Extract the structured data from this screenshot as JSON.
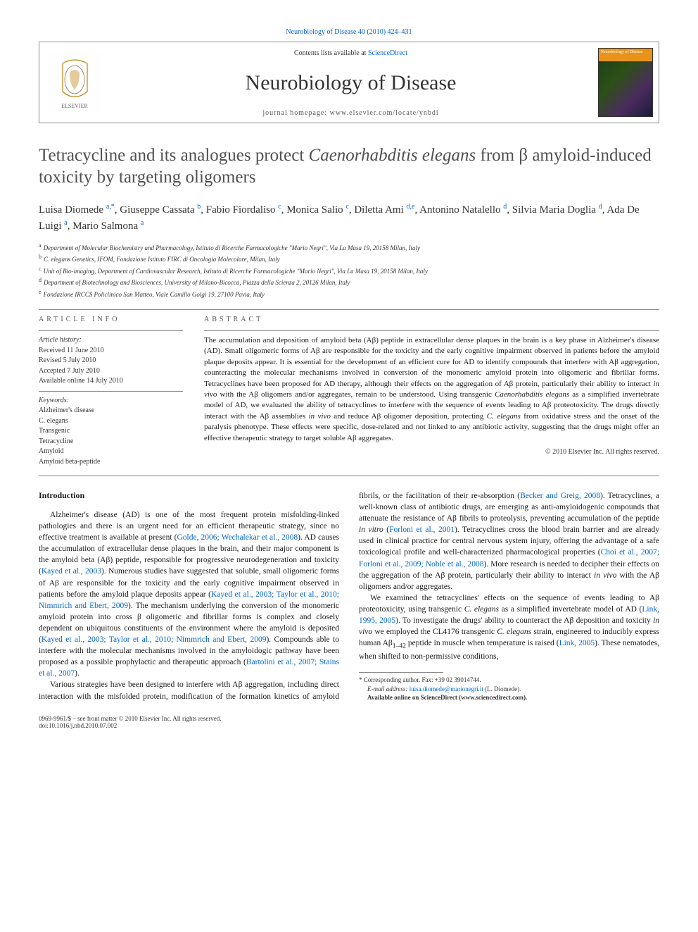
{
  "header": {
    "citation_link": "Neurobiology of Disease 40 (2010) 424–431",
    "contents_prefix": "Contents lists available at ",
    "contents_link": "ScienceDirect",
    "journal_name": "Neurobiology of Disease",
    "homepage_prefix": "journal homepage: ",
    "homepage_url": "www.elsevier.com/locate/ynbdi",
    "cover_label": "Neurobiology of Disease",
    "colors": {
      "link": "#0066cc",
      "border": "#888888",
      "text": "#1a1a1a",
      "cover_bar": "#e8941a"
    }
  },
  "title": {
    "html": "Tetracycline and its analogues protect <em>Caenorhabditis elegans</em> from β amyloid-induced toxicity by targeting oligomers"
  },
  "authors_html": "Luisa Diomede <sup>a,*</sup>, Giuseppe Cassata <sup>b</sup>, Fabio Fiordaliso <sup>c</sup>, Monica Salio <sup>c</sup>, Diletta Ami <sup>d,e</sup>, Antonino Natalello <sup>d</sup>, Silvia Maria Doglia <sup>d</sup>, Ada De Luigi <sup>a</sup>, Mario Salmona <sup>a</sup>",
  "affiliations": [
    {
      "sup": "a",
      "text": "Department of Molecular Biochemistry and Pharmacology, Istituto di Ricerche Farmacologiche \"Mario Negri\", Via La Masa 19, 20158 Milan, Italy"
    },
    {
      "sup": "b",
      "text": "C. elegans Genetics, IFOM, Fondazione Istituto FIRC di Oncologia Molecolare, Milan, Italy"
    },
    {
      "sup": "c",
      "text": "Unit of Bio-imaging, Department of Cardiovascular Research, Istituto di Ricerche Farmacologiche \"Mario Negri\", Via La Masa 19, 20158 Milan, Italy"
    },
    {
      "sup": "d",
      "text": "Department of Biotechnology and Biosciences, University of Milano-Bicocca, Piazza della Scienza 2, 20126 Milan, Italy"
    },
    {
      "sup": "e",
      "text": "Fondazione IRCCS Policlinico San Matteo, Viale Camillo Golgi 19, 27100 Pavia, Italy"
    }
  ],
  "article_info": {
    "heading": "ARTICLE INFO",
    "history_label": "Article history:",
    "history": [
      "Received 11 June 2010",
      "Revised 5 July 2010",
      "Accepted 7 July 2010",
      "Available online 14 July 2010"
    ],
    "keywords_label": "Keywords:",
    "keywords": [
      "Alzheimer's disease",
      "C. elegans",
      "Transgenic",
      "Tetracycline",
      "Amyloid",
      "Amyloid beta-peptide"
    ]
  },
  "abstract": {
    "heading": "ABSTRACT",
    "text_html": "The accumulation and deposition of amyloid beta (Aβ) peptide in extracellular dense plaques in the brain is a key phase in Alzheimer's disease (AD). Small oligomeric forms of Aβ are responsible for the toxicity and the early cognitive impairment observed in patients before the amyloid plaque deposits appear. It is essential for the development of an efficient cure for AD to identify compounds that interfere with Aβ aggregation, counteracting the molecular mechanisms involved in conversion of the monomeric amyloid protein into oligomeric and fibrillar forms. Tetracyclines have been proposed for AD therapy, although their effects on the aggregation of Aβ protein, particularly their ability to interact <em>in vivo</em> with the Aβ oligomers and/or aggregates, remain to be understood. Using transgenic <em>Caenorhabditis elegans</em> as a simplified invertebrate model of AD, we evaluated the ability of tetracyclines to interfere with the sequence of events leading to Aβ proteotoxicity. The drugs directly interact with the Aβ assemblies <em>in vivo</em> and reduce Aβ oligomer deposition, protecting <em>C. elegans</em> from oxidative stress and the onset of the paralysis phenotype. These effects were specific, dose-related and not linked to any antibiotic activity, suggesting that the drugs might offer an effective therapeutic strategy to target soluble Aβ aggregates.",
    "copyright": "© 2010 Elsevier Inc. All rights reserved."
  },
  "intro": {
    "heading": "Introduction",
    "paragraphs_html": [
      "Alzheimer's disease (AD) is one of the most frequent protein misfolding-linked pathologies and there is an urgent need for an efficient therapeutic strategy, since no effective treatment is available at present (<span class=\"cite\">Golde, 2006; Wechalekar et al., 2008</span>). AD causes the accumulation of extracellular dense plaques in the brain, and their major component is the amyloid beta (Aβ) peptide, responsible for progressive neurodegeneration and toxicity (<span class=\"cite\">Kayed et al., 2003</span>). Numerous studies have suggested that soluble, small oligomeric forms of Aβ are responsible for the toxicity and the early cognitive impairment observed in patients before the amyloid plaque deposits appear (<span class=\"cite\">Kayed et al., 2003; Taylor et al., 2010; Nimmrich and Ebert, 2009</span>). The mechanism underlying the conversion of the monomeric amyloid protein into cross β oligomeric and fibrillar forms is complex and closely dependent on ubiquitous constituents of the environment where the amyloid is deposited (<span class=\"cite\">Kayed et al., 2003; Taylor et al., 2010; Nimmrich and Ebert, 2009</span>). Compounds able to interfere with the molecular mechanisms involved in the amyloidogic pathway have been proposed as a possible prophylactic and therapeutic approach (<span class=\"cite\">Bartolini et al., 2007; Stains et al., 2007</span>).",
      "Various strategies have been designed to interfere with Aβ aggregation, including direct interaction with the misfolded protein, modification of the formation kinetics of amyloid fibrils, or the facilitation of their re-absorption (<span class=\"cite\">Becker and Greig, 2008</span>). Tetracyclines, a well-known class of antibiotic drugs, are emerging as anti-amyloidogenic compounds that attenuate the resistance of Aβ fibrils to proteolysis, preventing accumulation of the peptide <em>in vitro</em> (<span class=\"cite\">Forloni et al., 2001</span>). Tetracyclines cross the blood brain barrier and are already used in clinical practice for central nervous system injury, offering the advantage of a safe toxicological profile and well-characterized pharmacological properties (<span class=\"cite\">Choi et al., 2007; Forloni et al., 2009; Noble et al., 2008</span>). More research is needed to decipher their effects on the aggregation of the Aβ protein, particularly their ability to interact <em>in vivo</em> with the Aβ oligomers and/or aggregates.",
      "We examined the tetracyclines' effects on the sequence of events leading to Aβ proteotoxicity, using transgenic <em>C. elegans</em> as a simplified invertebrate model of AD (<span class=\"cite\">Link, 1995, 2005</span>). To investigate the drugs' ability to counteract the Aβ deposition and toxicity <em>in vivo</em> we employed the CL4176 transgenic <em>C. elegans</em> strain, engineered to inducibly express human Aβ<sub>1–42</sub> peptide in muscle when temperature is raised (<span class=\"cite\">Link, 2005</span>). These nematodes, when shifted to non-permissive conditions,"
    ]
  },
  "footnotes": {
    "corresponding": "* Corresponding author. Fax: +39 02 39014744.",
    "email_label": "E-mail address: ",
    "email": "luisa.diomede@marionegri.it",
    "email_suffix": " (L. Diomede).",
    "availability": "Available online on ScienceDirect (www.sciencedirect.com)."
  },
  "footer": {
    "left_line1": "0969-9961/$ – see front matter © 2010 Elsevier Inc. All rights reserved.",
    "left_line2": "doi:10.1016/j.nbd.2010.07.002"
  }
}
